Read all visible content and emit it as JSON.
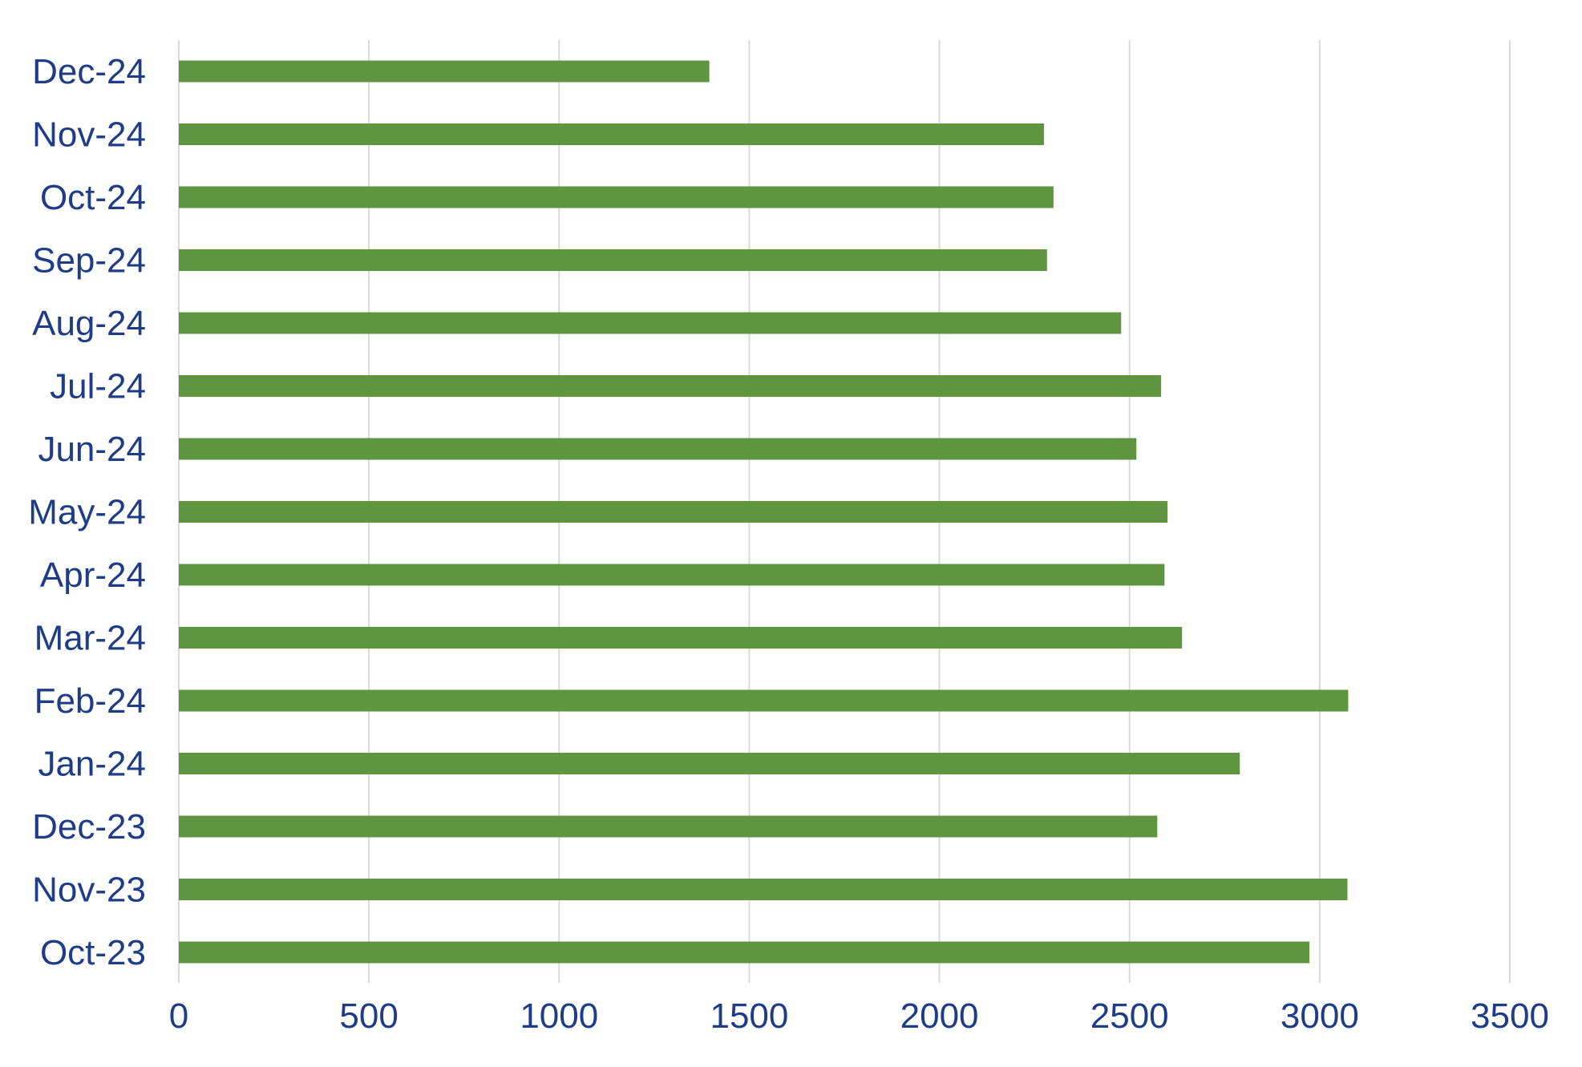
{
  "chart_data": {
    "type": "bar",
    "orientation": "horizontal",
    "categories": [
      "Dec-24",
      "Nov-24",
      "Oct-24",
      "Sep-24",
      "Aug-24",
      "Jul-24",
      "Jun-24",
      "May-24",
      "Apr-24",
      "Mar-24",
      "Feb-24",
      "Jan-24",
      "Dec-23",
      "Nov-23",
      "Oct-23"
    ],
    "values": [
      1395,
      2275,
      2300,
      2283,
      2478,
      2583,
      2518,
      2600,
      2592,
      2638,
      3075,
      2790,
      2573,
      3073,
      2973
    ],
    "title": "",
    "xlabel": "",
    "ylabel": "",
    "xlim": [
      0,
      3500
    ],
    "x_ticks": [
      "0",
      "500",
      "1000",
      "1500",
      "2000",
      "2500",
      "3000",
      "3500"
    ],
    "grid": "vertical",
    "legend": "none"
  },
  "colors": {
    "bar": "#5f9540",
    "label": "#1f3c88",
    "grid": "#d9d9d9",
    "axis": "#d9d9d9"
  }
}
